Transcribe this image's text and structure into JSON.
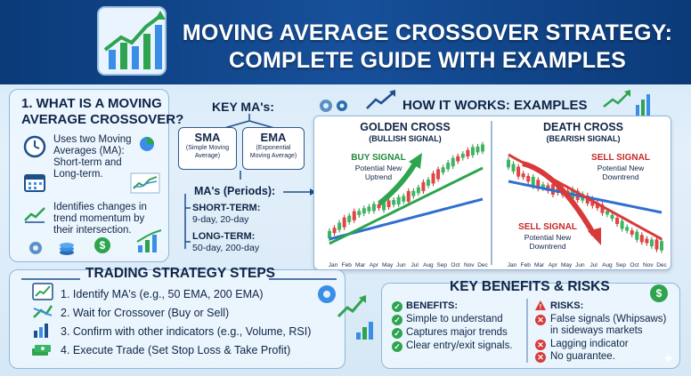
{
  "header": {
    "title_line1": "MOVING AVERAGE CROSSOVER STRATEGY:",
    "title_line2": "COMPLETE GUIDE WITH EXAMPLES"
  },
  "what_is": {
    "title_line1": "1. WHAT IS A MOVING",
    "title_line2": "AVERAGE CROSSOVER?",
    "item1_line1": "Uses two Moving",
    "item1_line2": "Averages (MA):",
    "item1_line3": "Short-term and",
    "item1_line4": "Long-term.",
    "item2_line1": "Identifies changes in",
    "item2_line2": "trend momentum by",
    "item2_line3": "their intersection."
  },
  "key_mas": {
    "title": "KEY MA's:",
    "sma_title": "SMA",
    "sma_sub_line1": "(Simple Moving",
    "sma_sub_line2": "Average)",
    "ema_title": "EMA",
    "ema_sub_line1": "(Exponential",
    "ema_sub_line2": "Moving Average)",
    "periods_title": "MA's (Periods):",
    "short_label": "SHORT-TERM:",
    "short_value": "9-day, 20-day",
    "long_label": "LONG-TERM:",
    "long_value": "50-day, 200-day"
  },
  "examples": {
    "title": "HOW IT WORKS: EXAMPLES",
    "golden_title": "GOLDEN CROSS",
    "golden_sub": "(BULLISH SIGNAL)",
    "buy_signal": "BUY SIGNAL",
    "buy_desc_line1": "Potential New",
    "buy_desc_line2": "Uptrend",
    "death_title": "DEATH CROSS",
    "death_sub": "(BEARISH SIGNAL)",
    "sell_signal1": "SELL SIGNAL",
    "sell_desc1_line1": "Potential New",
    "sell_desc1_line2": "Downtrend",
    "sell_signal2": "SELL SIGNAL",
    "sell_desc2_line1": "Potential New",
    "sell_desc2_line2": "Downtrend",
    "months": [
      "Jan",
      "Feb",
      "Mar",
      "Apr",
      "May",
      "Jun",
      "Jul",
      "Aug",
      "Sep",
      "Oct",
      "Nov",
      "Dec"
    ]
  },
  "steps": {
    "title": "TRADING STRATEGY STEPS",
    "items": [
      "1. Identify MA's (e.g., 50 EMA, 200 EMA)",
      "2. Wait for Crossover (Buy or Sell)",
      "3. Confirm with other indicators (e.g., Volume, RSI)",
      "4. Execute Trade (Set Stop Loss & Take Profit)"
    ]
  },
  "benefits": {
    "title": "KEY BENEFITS & RISKS",
    "benefits_label": "BENEFITS:",
    "benefits_items": [
      "Simple to understand",
      "Captures major trends",
      "Clear entry/exit signals."
    ],
    "risks_label": "RISKS:",
    "risk1_line1": "False signals (Whipsaws)",
    "risk1_line2": "in sideways markets",
    "risk2": "Lagging indicator",
    "risk3": "No guarantee."
  },
  "colors": {
    "navy": "#0b3a78",
    "green": "#2ea44f",
    "red": "#d83a3a",
    "blue_ma": "#2f6fd1"
  }
}
